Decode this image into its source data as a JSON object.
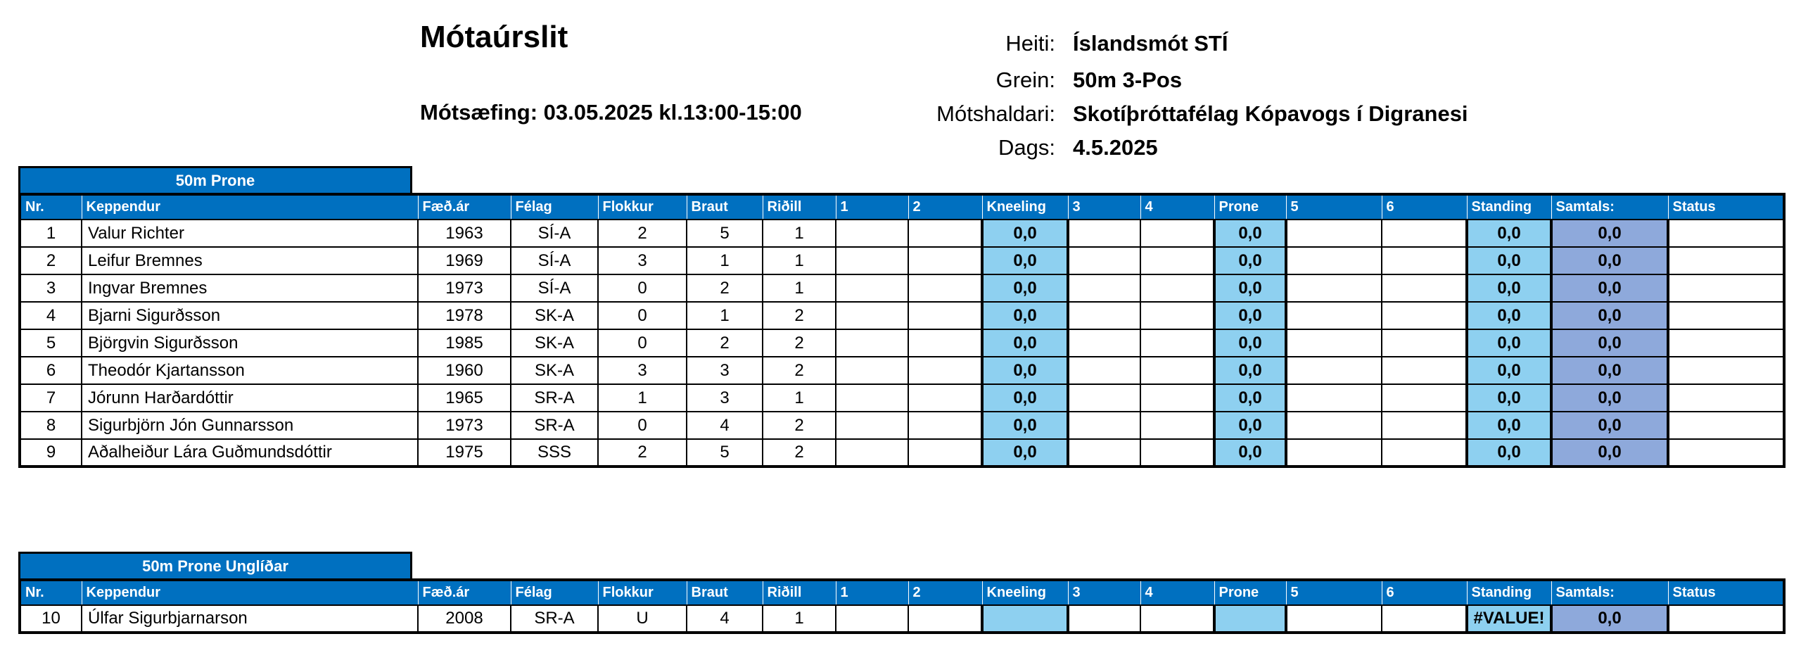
{
  "header": {
    "title": "Mótaúrslit",
    "practice": "Mótsæfing: 03.05.2025 kl.13:00-15:00",
    "info": [
      {
        "label": "Heiti:",
        "value": "Íslandsmót STÍ"
      },
      {
        "label": "Grein:",
        "value": "50m 3-Pos"
      },
      {
        "label": "Mótshaldari:",
        "value": "Skotíþróttafélag Kópavogs í Digranesi"
      },
      {
        "label": "Dags:",
        "value": "4.5.2025"
      }
    ]
  },
  "columns": [
    "Nr.",
    "Keppendur",
    "Fæð.ár",
    "Félag",
    "Flokkur",
    "Braut",
    "Riðill",
    "1",
    "2",
    "Kneeling",
    "3",
    "4",
    "Prone",
    "5",
    "6",
    "Standing",
    "Samtals:",
    "Status"
  ],
  "sections": [
    {
      "title": "50m Prone",
      "rows": [
        {
          "nr": "1",
          "name": "Valur Richter",
          "year": "1963",
          "club": "SÍ-A",
          "cat": "2",
          "lane": "5",
          "relay": "1",
          "kneeling": "0,0",
          "prone": "0,0",
          "standing": "0,0",
          "total": "0,0"
        },
        {
          "nr": "2",
          "name": "Leifur Bremnes",
          "year": "1969",
          "club": "SÍ-A",
          "cat": "3",
          "lane": "1",
          "relay": "1",
          "kneeling": "0,0",
          "prone": "0,0",
          "standing": "0,0",
          "total": "0,0"
        },
        {
          "nr": "3",
          "name": "Ingvar Bremnes",
          "year": "1973",
          "club": "SÍ-A",
          "cat": "0",
          "lane": "2",
          "relay": "1",
          "kneeling": "0,0",
          "prone": "0,0",
          "standing": "0,0",
          "total": "0,0"
        },
        {
          "nr": "4",
          "name": "Bjarni Sigurðsson",
          "year": "1978",
          "club": "SK-A",
          "cat": "0",
          "lane": "1",
          "relay": "2",
          "kneeling": "0,0",
          "prone": "0,0",
          "standing": "0,0",
          "total": "0,0"
        },
        {
          "nr": "5",
          "name": "Björgvin Sigurðsson",
          "year": "1985",
          "club": "SK-A",
          "cat": "0",
          "lane": "2",
          "relay": "2",
          "kneeling": "0,0",
          "prone": "0,0",
          "standing": "0,0",
          "total": "0,0"
        },
        {
          "nr": "6",
          "name": "Theodór Kjartansson",
          "year": "1960",
          "club": "SK-A",
          "cat": "3",
          "lane": "3",
          "relay": "2",
          "kneeling": "0,0",
          "prone": "0,0",
          "standing": "0,0",
          "total": "0,0"
        },
        {
          "nr": "7",
          "name": "Jórunn Harðardóttir",
          "year": "1965",
          "club": "SR-A",
          "cat": "1",
          "lane": "3",
          "relay": "1",
          "kneeling": "0,0",
          "prone": "0,0",
          "standing": "0,0",
          "total": "0,0"
        },
        {
          "nr": "8",
          "name": "Sigurbjörn Jón Gunnarsson",
          "year": "1973",
          "club": "SR-A",
          "cat": "0",
          "lane": "4",
          "relay": "2",
          "kneeling": "0,0",
          "prone": "0,0",
          "standing": "0,0",
          "total": "0,0"
        },
        {
          "nr": "9",
          "name": "Aðalheiður Lára Guðmundsdóttir",
          "year": "1975",
          "club": "SSS",
          "cat": "2",
          "lane": "5",
          "relay": "2",
          "kneeling": "0,0",
          "prone": "0,0",
          "standing": "0,0",
          "total": "0,0"
        }
      ]
    },
    {
      "title": "50m Prone Unglíðar",
      "rows": [
        {
          "nr": "10",
          "name": "Úlfar Sigurbjarnarson",
          "year": "2008",
          "club": "SR-A",
          "cat": "U",
          "lane": "4",
          "relay": "1",
          "kneeling": "",
          "prone": "",
          "standing": "#VALUE!",
          "total": "0,0"
        }
      ]
    }
  ],
  "colors": {
    "header_blue": "#0070C0",
    "score_blue": "#8ED0F0",
    "total_blue": "#8EA9DB"
  }
}
